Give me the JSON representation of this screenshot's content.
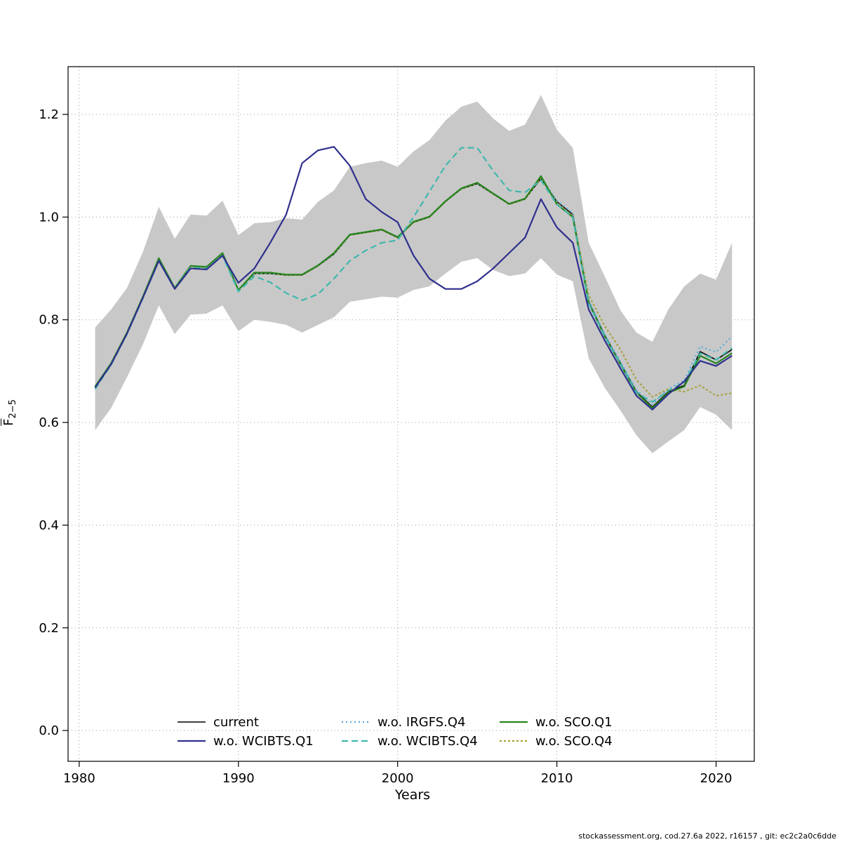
{
  "footer": {
    "text": "stockassessment.org, cod.27.6a 2022, r16157 , git: ec2c2a0c6dde"
  },
  "chart_data": {
    "type": "line",
    "title": "",
    "xlabel": "Years",
    "ylabel_letter": "F",
    "ylabel_subscript": "2−5",
    "xlim": [
      1979.3,
      2022.4
    ],
    "ylim": [
      -0.06,
      1.293
    ],
    "x_ticks": [
      1980,
      1990,
      2000,
      2010,
      2020
    ],
    "y_ticks": [
      0.0,
      0.2,
      0.4,
      0.6,
      0.8,
      1.0,
      1.2
    ],
    "y_tick_labels": [
      "0.0",
      "0.2",
      "0.4",
      "0.6",
      "0.8",
      "1.0",
      "1.2"
    ],
    "grid": "dotted",
    "grid_color": "#999999",
    "years": [
      1981,
      1982,
      1983,
      1984,
      1985,
      1986,
      1987,
      1988,
      1989,
      1990,
      1991,
      1992,
      1993,
      1994,
      1995,
      1996,
      1997,
      1998,
      1999,
      2000,
      2001,
      2002,
      2003,
      2004,
      2005,
      2006,
      2007,
      2008,
      2009,
      2010,
      2011,
      2012,
      2013,
      2014,
      2015,
      2016,
      2017,
      2018,
      2019,
      2020,
      2021
    ],
    "band": {
      "color": "#c8c8c8",
      "lower": [
        0.585,
        0.628,
        0.688,
        0.752,
        0.828,
        0.772,
        0.81,
        0.812,
        0.828,
        0.778,
        0.8,
        0.796,
        0.79,
        0.775,
        0.79,
        0.805,
        0.835,
        0.84,
        0.845,
        0.843,
        0.858,
        0.865,
        0.89,
        0.913,
        0.92,
        0.897,
        0.885,
        0.89,
        0.92,
        0.888,
        0.875,
        0.725,
        0.668,
        0.623,
        0.575,
        0.54,
        0.563,
        0.585,
        0.63,
        0.615,
        0.585
      ],
      "upper": [
        0.785,
        0.82,
        0.862,
        0.932,
        1.02,
        0.958,
        1.005,
        1.003,
        1.032,
        0.965,
        0.988,
        0.99,
        0.998,
        0.995,
        1.03,
        1.052,
        1.098,
        1.105,
        1.11,
        1.098,
        1.128,
        1.15,
        1.188,
        1.215,
        1.225,
        1.192,
        1.168,
        1.18,
        1.238,
        1.17,
        1.135,
        0.95,
        0.885,
        0.818,
        0.775,
        0.757,
        0.82,
        0.865,
        0.89,
        0.878,
        0.95
      ]
    },
    "series": [
      {
        "name": "current",
        "color": "#000000",
        "width": 1.6,
        "dash": "",
        "values": [
          0.67,
          0.715,
          0.775,
          0.845,
          0.92,
          0.862,
          0.905,
          0.903,
          0.93,
          0.858,
          0.89,
          0.89,
          0.887,
          0.887,
          0.905,
          0.928,
          0.965,
          0.97,
          0.975,
          0.96,
          0.99,
          1.0,
          1.03,
          1.055,
          1.065,
          1.045,
          1.025,
          1.035,
          1.075,
          1.03,
          1.005,
          0.835,
          0.77,
          0.715,
          0.66,
          0.63,
          0.66,
          0.672,
          0.738,
          0.722,
          0.742
        ]
      },
      {
        "name": "w.o. WCIBTS.Q1",
        "color": "#2f2f8e",
        "width": 2.2,
        "dash": "",
        "values": [
          0.668,
          0.713,
          0.773,
          0.843,
          0.915,
          0.86,
          0.9,
          0.898,
          0.925,
          0.872,
          0.9,
          0.95,
          1.005,
          1.105,
          1.13,
          1.137,
          1.1,
          1.035,
          1.01,
          0.99,
          0.925,
          0.88,
          0.86,
          0.86,
          0.875,
          0.9,
          0.93,
          0.96,
          1.035,
          0.98,
          0.95,
          0.82,
          0.76,
          0.705,
          0.652,
          0.625,
          0.655,
          0.68,
          0.72,
          0.71,
          0.73
        ]
      },
      {
        "name": "w.o. IRGFS.Q4",
        "color": "#53aadf",
        "width": 2.2,
        "dash": "2 4",
        "values": [
          0.67,
          0.715,
          0.775,
          0.845,
          0.918,
          0.862,
          0.905,
          0.903,
          0.928,
          0.858,
          0.89,
          0.89,
          0.887,
          0.887,
          0.905,
          0.928,
          0.965,
          0.97,
          0.975,
          0.962,
          0.99,
          1.0,
          1.03,
          1.055,
          1.065,
          1.045,
          1.025,
          1.035,
          1.078,
          1.032,
          1.008,
          0.838,
          0.772,
          0.718,
          0.663,
          0.635,
          0.665,
          0.682,
          0.748,
          0.737,
          0.768
        ]
      },
      {
        "name": "w.o. WCIBTS.Q4",
        "color": "#3fb8ac",
        "width": 2.2,
        "dash": "9 5",
        "values": [
          0.665,
          0.712,
          0.772,
          0.842,
          0.915,
          0.86,
          0.902,
          0.9,
          0.925,
          0.855,
          0.885,
          0.873,
          0.852,
          0.838,
          0.85,
          0.88,
          0.915,
          0.935,
          0.95,
          0.955,
          1.0,
          1.05,
          1.1,
          1.135,
          1.135,
          1.09,
          1.052,
          1.048,
          1.072,
          1.025,
          1.0,
          0.832,
          0.768,
          0.714,
          0.658,
          0.64,
          0.662,
          0.678,
          0.735,
          0.722,
          0.745
        ]
      },
      {
        "name": "w.o. SCO.Q1",
        "color": "#27861f",
        "width": 2.2,
        "dash": "",
        "values": [
          0.67,
          0.715,
          0.775,
          0.845,
          0.92,
          0.862,
          0.905,
          0.903,
          0.93,
          0.858,
          0.892,
          0.892,
          0.888,
          0.888,
          0.906,
          0.93,
          0.966,
          0.971,
          0.976,
          0.961,
          0.991,
          1.001,
          1.031,
          1.056,
          1.067,
          1.046,
          1.026,
          1.036,
          1.08,
          1.025,
          1.0,
          0.833,
          0.768,
          0.713,
          0.658,
          0.628,
          0.658,
          0.67,
          0.73,
          0.715,
          0.735
        ]
      },
      {
        "name": "w.o. SCO.Q4",
        "color": "#a6a13a",
        "width": 2.2,
        "dash": "3 3",
        "values": [
          0.67,
          0.715,
          0.775,
          0.845,
          0.919,
          0.861,
          0.904,
          0.902,
          0.929,
          0.857,
          0.891,
          0.891,
          0.887,
          0.887,
          0.905,
          0.929,
          0.965,
          0.97,
          0.975,
          0.96,
          0.99,
          1.0,
          1.03,
          1.055,
          1.066,
          1.045,
          1.025,
          1.035,
          1.077,
          1.028,
          1.002,
          0.848,
          0.788,
          0.742,
          0.683,
          0.65,
          0.665,
          0.66,
          0.672,
          0.652,
          0.657
        ]
      }
    ],
    "legend": {
      "position": "bottom-inside",
      "labels": [
        "current",
        "w.o. WCIBTS.Q1",
        "w.o. IRGFS.Q4",
        "w.o. WCIBTS.Q4",
        "w.o. SCO.Q1",
        "w.o. SCO.Q4"
      ]
    }
  }
}
